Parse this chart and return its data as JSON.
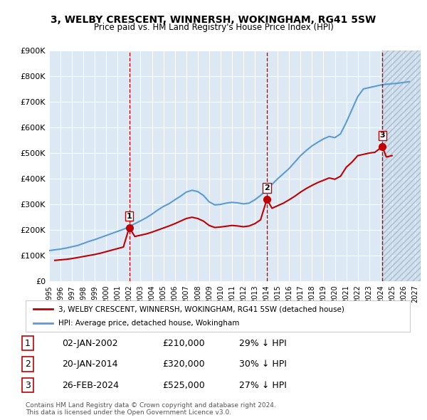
{
  "title": "3, WELBY CRESCENT, WINNERSH, WOKINGHAM, RG41 5SW",
  "subtitle": "Price paid vs. HM Land Registry's House Price Index (HPI)",
  "ylabel": "",
  "ylim": [
    0,
    900000
  ],
  "yticks": [
    0,
    100000,
    200000,
    300000,
    400000,
    500000,
    600000,
    700000,
    800000,
    900000
  ],
  "ytick_labels": [
    "£0",
    "£100K",
    "£200K",
    "£300K",
    "£400K",
    "£500K",
    "£600K",
    "£700K",
    "£800K",
    "£900K"
  ],
  "xlim_start": 1995.0,
  "xlim_end": 2027.5,
  "xtick_years": [
    1995,
    1996,
    1997,
    1998,
    1999,
    2000,
    2001,
    2002,
    2003,
    2004,
    2005,
    2006,
    2007,
    2008,
    2009,
    2010,
    2011,
    2012,
    2013,
    2014,
    2015,
    2016,
    2017,
    2018,
    2019,
    2020,
    2021,
    2022,
    2023,
    2024,
    2025,
    2026,
    2027
  ],
  "background_color": "#dce9f5",
  "plot_bg_color": "#dce9f5",
  "grid_color": "#ffffff",
  "hpi_color": "#5b9bd5",
  "price_color": "#c00000",
  "sale_marker_color": "#c00000",
  "sale_vline_color": "#c00000",
  "purchases": [
    {
      "date_num": 2002.01,
      "price": 210000,
      "label": "1",
      "pct": "29%"
    },
    {
      "date_num": 2014.05,
      "price": 320000,
      "label": "2",
      "pct": "30%"
    },
    {
      "date_num": 2024.15,
      "price": 525000,
      "label": "3",
      "pct": "27%"
    }
  ],
  "hpi_x": [
    1995,
    1995.5,
    1996,
    1996.5,
    1997,
    1997.5,
    1998,
    1998.5,
    1999,
    1999.5,
    2000,
    2000.5,
    2001,
    2001.5,
    2002,
    2002.5,
    2003,
    2003.5,
    2004,
    2004.5,
    2005,
    2005.5,
    2006,
    2006.5,
    2007,
    2007.5,
    2008,
    2008.5,
    2009,
    2009.5,
    2010,
    2010.5,
    2011,
    2011.5,
    2012,
    2012.5,
    2013,
    2013.5,
    2014,
    2014.5,
    2015,
    2015.5,
    2016,
    2016.5,
    2017,
    2017.5,
    2018,
    2018.5,
    2019,
    2019.5,
    2020,
    2020.5,
    2021,
    2021.5,
    2022,
    2022.5,
    2023,
    2023.5,
    2024,
    2024.5,
    2025,
    2025.5,
    2026,
    2026.5
  ],
  "hpi_y": [
    120000,
    123000,
    126000,
    130000,
    135000,
    140000,
    148000,
    156000,
    163000,
    171000,
    179000,
    187000,
    195000,
    203000,
    213000,
    225000,
    236000,
    248000,
    262000,
    278000,
    292000,
    303000,
    318000,
    332000,
    348000,
    355000,
    350000,
    335000,
    310000,
    298000,
    300000,
    305000,
    308000,
    306000,
    302000,
    305000,
    318000,
    335000,
    355000,
    378000,
    400000,
    420000,
    440000,
    465000,
    490000,
    510000,
    528000,
    542000,
    555000,
    565000,
    560000,
    575000,
    620000,
    670000,
    720000,
    750000,
    755000,
    760000,
    765000,
    768000,
    770000,
    772000,
    775000,
    778000
  ],
  "price_x": [
    1995.5,
    1996,
    1996.5,
    1997,
    1997.5,
    1998,
    1998.5,
    1999,
    1999.5,
    2000,
    2000.5,
    2001,
    2001.5,
    2002.01,
    2002.5,
    2003,
    2003.5,
    2004,
    2004.5,
    2005,
    2005.5,
    2006,
    2006.5,
    2007,
    2007.5,
    2008,
    2008.5,
    2009,
    2009.5,
    2010,
    2010.5,
    2011,
    2011.5,
    2012,
    2012.5,
    2013,
    2013.5,
    2014.05,
    2014.5,
    2015,
    2015.5,
    2016,
    2016.5,
    2017,
    2017.5,
    2018,
    2018.5,
    2019,
    2019.5,
    2020,
    2020.5,
    2021,
    2021.5,
    2022,
    2022.5,
    2023,
    2023.5,
    2024.15,
    2024.5,
    2025
  ],
  "price_y": [
    82000,
    84000,
    86000,
    89000,
    93000,
    97000,
    101000,
    105000,
    110000,
    116000,
    122000,
    128000,
    134000,
    210000,
    175000,
    180000,
    185000,
    192000,
    200000,
    208000,
    216000,
    225000,
    235000,
    245000,
    250000,
    245000,
    235000,
    218000,
    210000,
    212000,
    215000,
    218000,
    216000,
    213000,
    216000,
    225000,
    240000,
    320000,
    285000,
    295000,
    305000,
    318000,
    332000,
    348000,
    362000,
    374000,
    385000,
    394000,
    403000,
    398000,
    410000,
    445000,
    465000,
    490000,
    495000,
    500000,
    503000,
    525000,
    485000,
    490000
  ],
  "legend_price_label": "3, WELBY CRESCENT, WINNERSH, WOKINGHAM, RG41 5SW (detached house)",
  "legend_hpi_label": "HPI: Average price, detached house, Wokingham",
  "table_rows": [
    {
      "num": "1",
      "date": "02-JAN-2002",
      "price": "£210,000",
      "pct": "29% ↓ HPI"
    },
    {
      "num": "2",
      "date": "20-JAN-2014",
      "price": "£320,000",
      "pct": "30% ↓ HPI"
    },
    {
      "num": "3",
      "date": "26-FEB-2024",
      "price": "£525,000",
      "pct": "27% ↓ HPI"
    }
  ],
  "footnote1": "Contains HM Land Registry data © Crown copyright and database right 2024.",
  "footnote2": "This data is licensed under the Open Government Licence v3.0."
}
